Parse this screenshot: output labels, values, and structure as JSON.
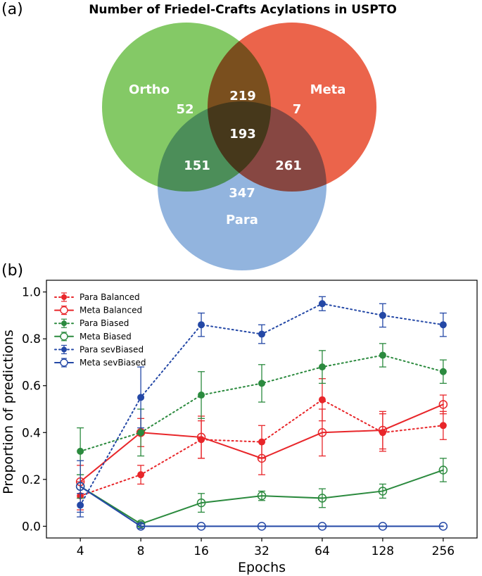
{
  "panels": {
    "a": "(a)",
    "b": "(b)"
  },
  "chart_data": [
    {
      "type": "venn",
      "title": "Number of Friedel-Crafts Acylations in USPTO",
      "sets": [
        {
          "name": "Ortho",
          "color": "#6ebf4b"
        },
        {
          "name": "Meta",
          "color": "#e8492c"
        },
        {
          "name": "Para",
          "color": "#7fa7d8"
        }
      ],
      "regions": {
        "ortho_only": 52,
        "meta_only": 7,
        "para_only": 347,
        "ortho_meta": 219,
        "ortho_para": 151,
        "meta_para": 261,
        "all_three": 193
      }
    },
    {
      "type": "line",
      "xlabel": "Epochs",
      "ylabel": "Proportion of predictions",
      "x": [
        4,
        8,
        16,
        32,
        64,
        128,
        256
      ],
      "xscale": "log2",
      "ylim": [
        -0.05,
        1.05
      ],
      "yticks": [
        0.0,
        0.2,
        0.4,
        0.6,
        0.8,
        1.0
      ],
      "legend_position": "top-left",
      "series": [
        {
          "name": "Para Balanced",
          "color": "#e8262a",
          "linestyle": "dotted",
          "marker": "filled",
          "values": [
            0.13,
            0.22,
            0.37,
            0.36,
            0.54,
            0.4,
            0.43
          ],
          "errors": [
            0.06,
            0.04,
            0.08,
            0.07,
            0.09,
            0.08,
            0.06
          ]
        },
        {
          "name": "Meta Balanced",
          "color": "#e8262a",
          "linestyle": "solid",
          "marker": "open",
          "values": [
            0.19,
            0.4,
            0.38,
            0.29,
            0.4,
            0.41,
            0.52
          ],
          "errors": [
            0.07,
            0.06,
            0.09,
            0.07,
            0.1,
            0.08,
            0.04
          ]
        },
        {
          "name": "Para Biased",
          "color": "#2b8a3e",
          "linestyle": "dotted",
          "marker": "filled",
          "values": [
            0.32,
            0.4,
            0.56,
            0.61,
            0.68,
            0.73,
            0.66
          ],
          "errors": [
            0.1,
            0.1,
            0.1,
            0.08,
            0.07,
            0.05,
            0.05
          ]
        },
        {
          "name": "Meta Biased",
          "color": "#2b8a3e",
          "linestyle": "solid",
          "marker": "open",
          "values": [
            0.17,
            0.01,
            0.1,
            0.13,
            0.12,
            0.15,
            0.24
          ],
          "errors": [
            0.05,
            0.01,
            0.04,
            0.02,
            0.04,
            0.03,
            0.05
          ]
        },
        {
          "name": "Para sevBiased",
          "color": "#2448a6",
          "linestyle": "dotted",
          "marker": "filled",
          "values": [
            0.09,
            0.55,
            0.86,
            0.82,
            0.95,
            0.9,
            0.86
          ],
          "errors": [
            0.05,
            0.13,
            0.05,
            0.04,
            0.03,
            0.05,
            0.05
          ]
        },
        {
          "name": "Meta sevBiased",
          "color": "#2448a6",
          "linestyle": "solid",
          "marker": "open",
          "values": [
            0.17,
            0.0,
            0.0,
            0.0,
            0.0,
            0.0,
            0.0
          ],
          "errors": [
            0.11,
            0.01,
            0.0,
            0.0,
            0.0,
            0.0,
            0.0
          ]
        }
      ]
    }
  ]
}
